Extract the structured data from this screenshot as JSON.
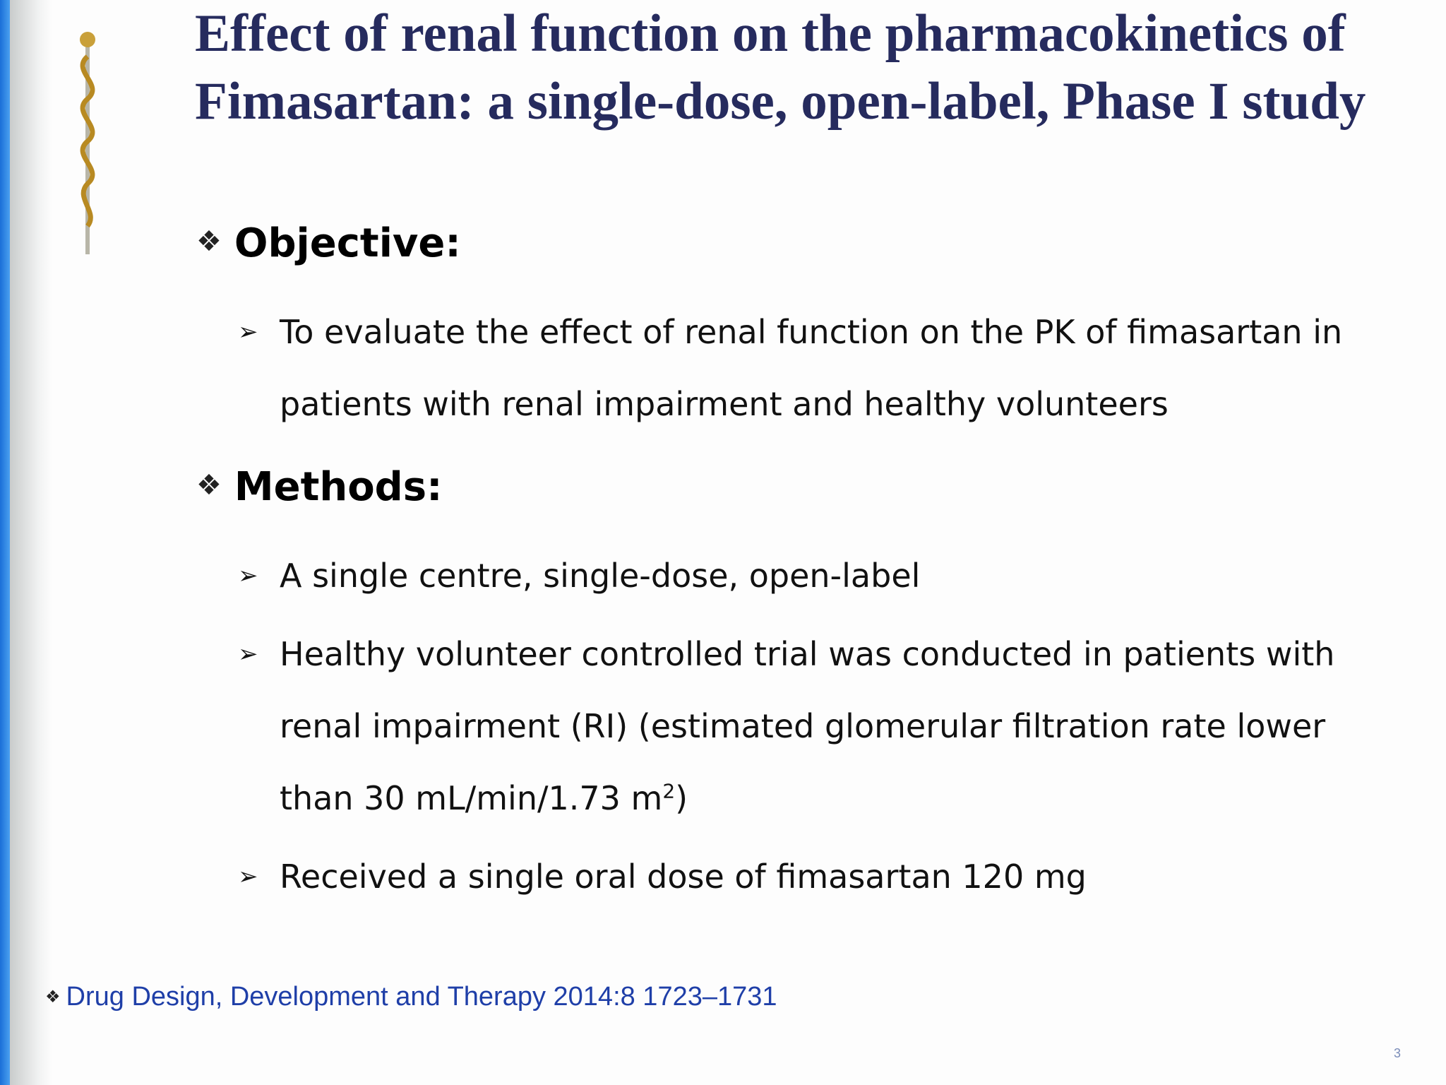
{
  "slide": {
    "title": "Effect of renal function on the pharmacokinetics of Fimasartan: a single-dose, open-label, Phase I study",
    "sections": [
      {
        "heading": "Objective:",
        "bullets": [
          {
            "text": "To evaluate the effect of renal function on the PK of fimasartan in patients with renal impairment and healthy volunteers"
          }
        ]
      },
      {
        "heading": "Methods:",
        "bullets": [
          {
            "text": "A single centre, single-dose, open-label"
          },
          {
            "text": "Healthy volunteer controlled trial was conducted in patients with renal impairment (RI) (estimated glomerular filtration rate lower than 30 mL/min/1.73 m",
            "superscript": "2",
            "tail": ")"
          },
          {
            "text": "Received a single oral dose of fimasartan 120 mg"
          }
        ]
      }
    ],
    "citation": "Drug Design, Development and Therapy 2014:8 1723–1731",
    "page_number": "3"
  }
}
